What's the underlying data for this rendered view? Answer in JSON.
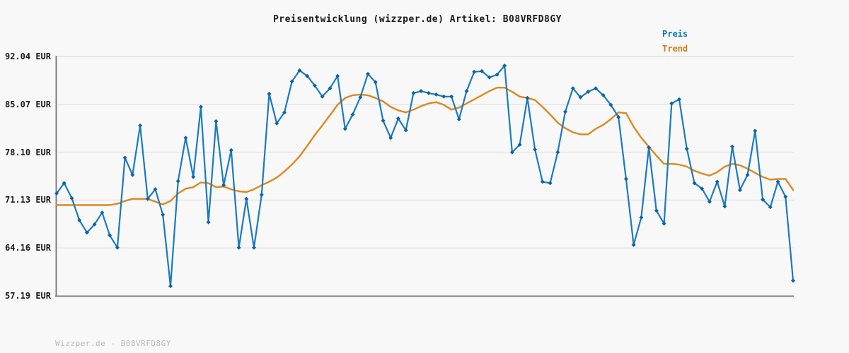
{
  "title": "Preisentwicklung (wizzper.de) Artikel: B08VRFD8GY",
  "legend": {
    "preis_label": "Preis",
    "trend_label": "Trend"
  },
  "footer": {
    "watermark": "Wizzper.de - B08VRFD8GY"
  },
  "colors": {
    "preis_line": "#1b7ac2",
    "preis_marker": "#11629f",
    "trend_line": "#de8821",
    "legend_preis_text": "#0a76c8",
    "legend_trend_text": "#cf7c10",
    "grid": "#e3e3e3",
    "axis": "#7f7f7f",
    "background": "#f8f8f8",
    "tick_text": "#1a1a1a",
    "watermark_text": "#b9b9b9"
  },
  "chart_data": {
    "type": "line",
    "title": "Preisentwicklung (wizzper.de) Artikel: B08VRFD8GY",
    "xlabel": "",
    "ylabel": "EUR",
    "x_axis_note": "time series, no x tick labels shown",
    "ylim": [
      57.19,
      92.04
    ],
    "grid": "horizontal-only",
    "legend_position": "top-right",
    "yticks": [
      {
        "value": 92.04,
        "label": "92.04 EUR"
      },
      {
        "value": 85.07,
        "label": "85.07 EUR"
      },
      {
        "value": 78.1,
        "label": "78.10 EUR"
      },
      {
        "value": 71.13,
        "label": "71.13 EUR"
      },
      {
        "value": 64.16,
        "label": "64.16 EUR"
      },
      {
        "value": 57.19,
        "label": "57.19 EUR"
      }
    ],
    "series": [
      {
        "name": "Preis",
        "marker": "diamond",
        "values": [
          72.1,
          73.6,
          71.4,
          68.2,
          66.4,
          67.6,
          69.3,
          66.0,
          64.2,
          77.3,
          74.8,
          82.0,
          71.3,
          72.7,
          69.0,
          58.6,
          73.9,
          80.2,
          74.5,
          84.7,
          67.9,
          82.6,
          73.3,
          78.4,
          64.2,
          71.3,
          64.2,
          71.9,
          86.6,
          82.3,
          83.9,
          88.4,
          90.0,
          89.2,
          87.8,
          86.2,
          87.4,
          89.2,
          81.5,
          83.6,
          86.1,
          89.5,
          88.3,
          82.7,
          80.2,
          83.0,
          81.3,
          86.7,
          87.0,
          86.7,
          86.5,
          86.2,
          86.2,
          82.9,
          87.0,
          89.8,
          89.9,
          89.0,
          89.4,
          90.7,
          78.1,
          79.2,
          86.0,
          78.5,
          73.8,
          73.6,
          78.1,
          84.0,
          87.4,
          86.1,
          86.9,
          87.4,
          86.4,
          85.0,
          83.2,
          74.2,
          64.6,
          68.6,
          78.8,
          69.6,
          67.7,
          85.2,
          85.8,
          78.6,
          73.6,
          72.8,
          70.9,
          73.8,
          70.2,
          78.9,
          72.6,
          74.8,
          81.2,
          71.2,
          70.1,
          73.8,
          71.6,
          59.4
        ]
      },
      {
        "name": "Trend",
        "marker": "none",
        "values": [
          70.4,
          70.4,
          70.4,
          70.4,
          70.4,
          70.4,
          70.4,
          70.4,
          70.6,
          71.0,
          71.3,
          71.3,
          71.3,
          70.9,
          70.5,
          71.0,
          72.1,
          72.8,
          73.0,
          73.7,
          73.6,
          73.0,
          73.1,
          72.7,
          72.4,
          72.3,
          72.7,
          73.3,
          73.8,
          74.4,
          75.3,
          76.3,
          77.5,
          79.0,
          80.6,
          82.0,
          83.5,
          85.0,
          86.0,
          86.4,
          86.5,
          86.4,
          86.0,
          85.5,
          84.7,
          84.2,
          83.9,
          84.3,
          84.8,
          85.2,
          85.4,
          85.0,
          84.3,
          84.6,
          85.2,
          85.8,
          86.4,
          87.0,
          87.5,
          87.5,
          86.9,
          86.2,
          86.0,
          85.7,
          84.7,
          83.6,
          82.4,
          81.6,
          81.0,
          80.7,
          80.7,
          81.5,
          82.1,
          82.9,
          83.9,
          83.8,
          81.8,
          80.2,
          78.9,
          77.6,
          76.4,
          76.4,
          76.3,
          76.0,
          75.4,
          75.0,
          74.7,
          75.2,
          76.0,
          76.4,
          76.2,
          75.7,
          75.1,
          74.5,
          74.1,
          74.2,
          74.2,
          72.6
        ]
      }
    ]
  }
}
